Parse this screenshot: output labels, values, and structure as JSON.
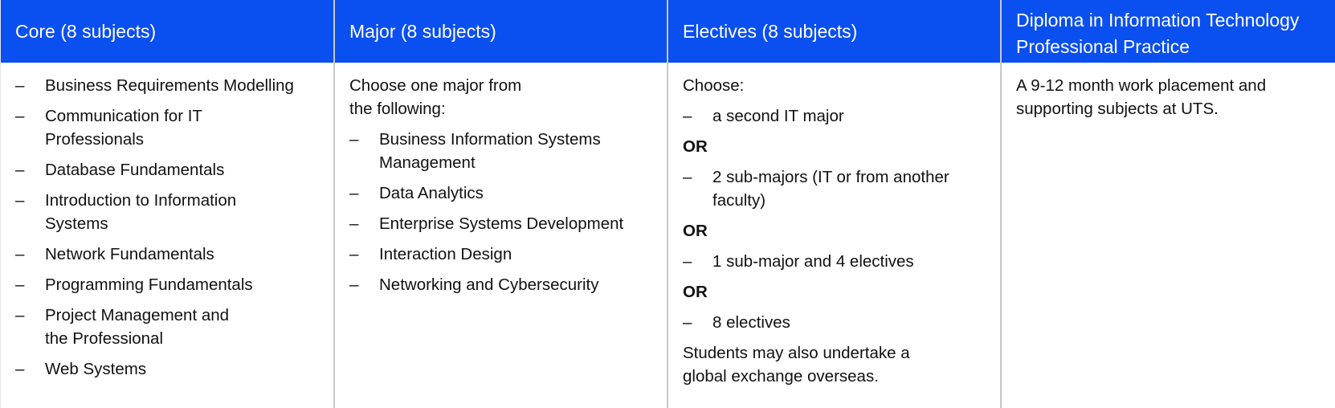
{
  "columns": {
    "core": {
      "title": "Core (8 subjects)",
      "items": [
        "Business Requirements Modelling",
        "Communication for IT Professionals",
        "Database Fundamentals",
        "Introduction to Information Systems",
        "Network Fundamentals",
        "Programming Fundamentals",
        "Project Management and the Professional",
        "Web Systems"
      ]
    },
    "major": {
      "title": "Major (8 subjects)",
      "intro": "Choose one major from the following:",
      "items": [
        "Business Information Systems Management",
        "Data Analytics",
        "Enterprise Systems Development",
        "Interaction Design",
        "Networking and Cybersecurity"
      ]
    },
    "electives": {
      "title": "Electives (8 subjects)",
      "intro": "Choose:",
      "options": [
        "a second IT major",
        "2 sub-majors (IT or from another faculty)",
        "1 sub-major and 4 electives",
        "8 electives"
      ],
      "or_label": "OR",
      "note": "Students may also undertake a global exchange overseas."
    },
    "diploma": {
      "title": "Diploma in Information Technology Professional Practice",
      "description": "A 9-12 month work placement and supporting subjects at UTS."
    }
  },
  "colors": {
    "header_bg": "#0a4ff0",
    "header_text": "#ffffff",
    "divider": "#c9c9c9",
    "body_text": "#111111"
  }
}
